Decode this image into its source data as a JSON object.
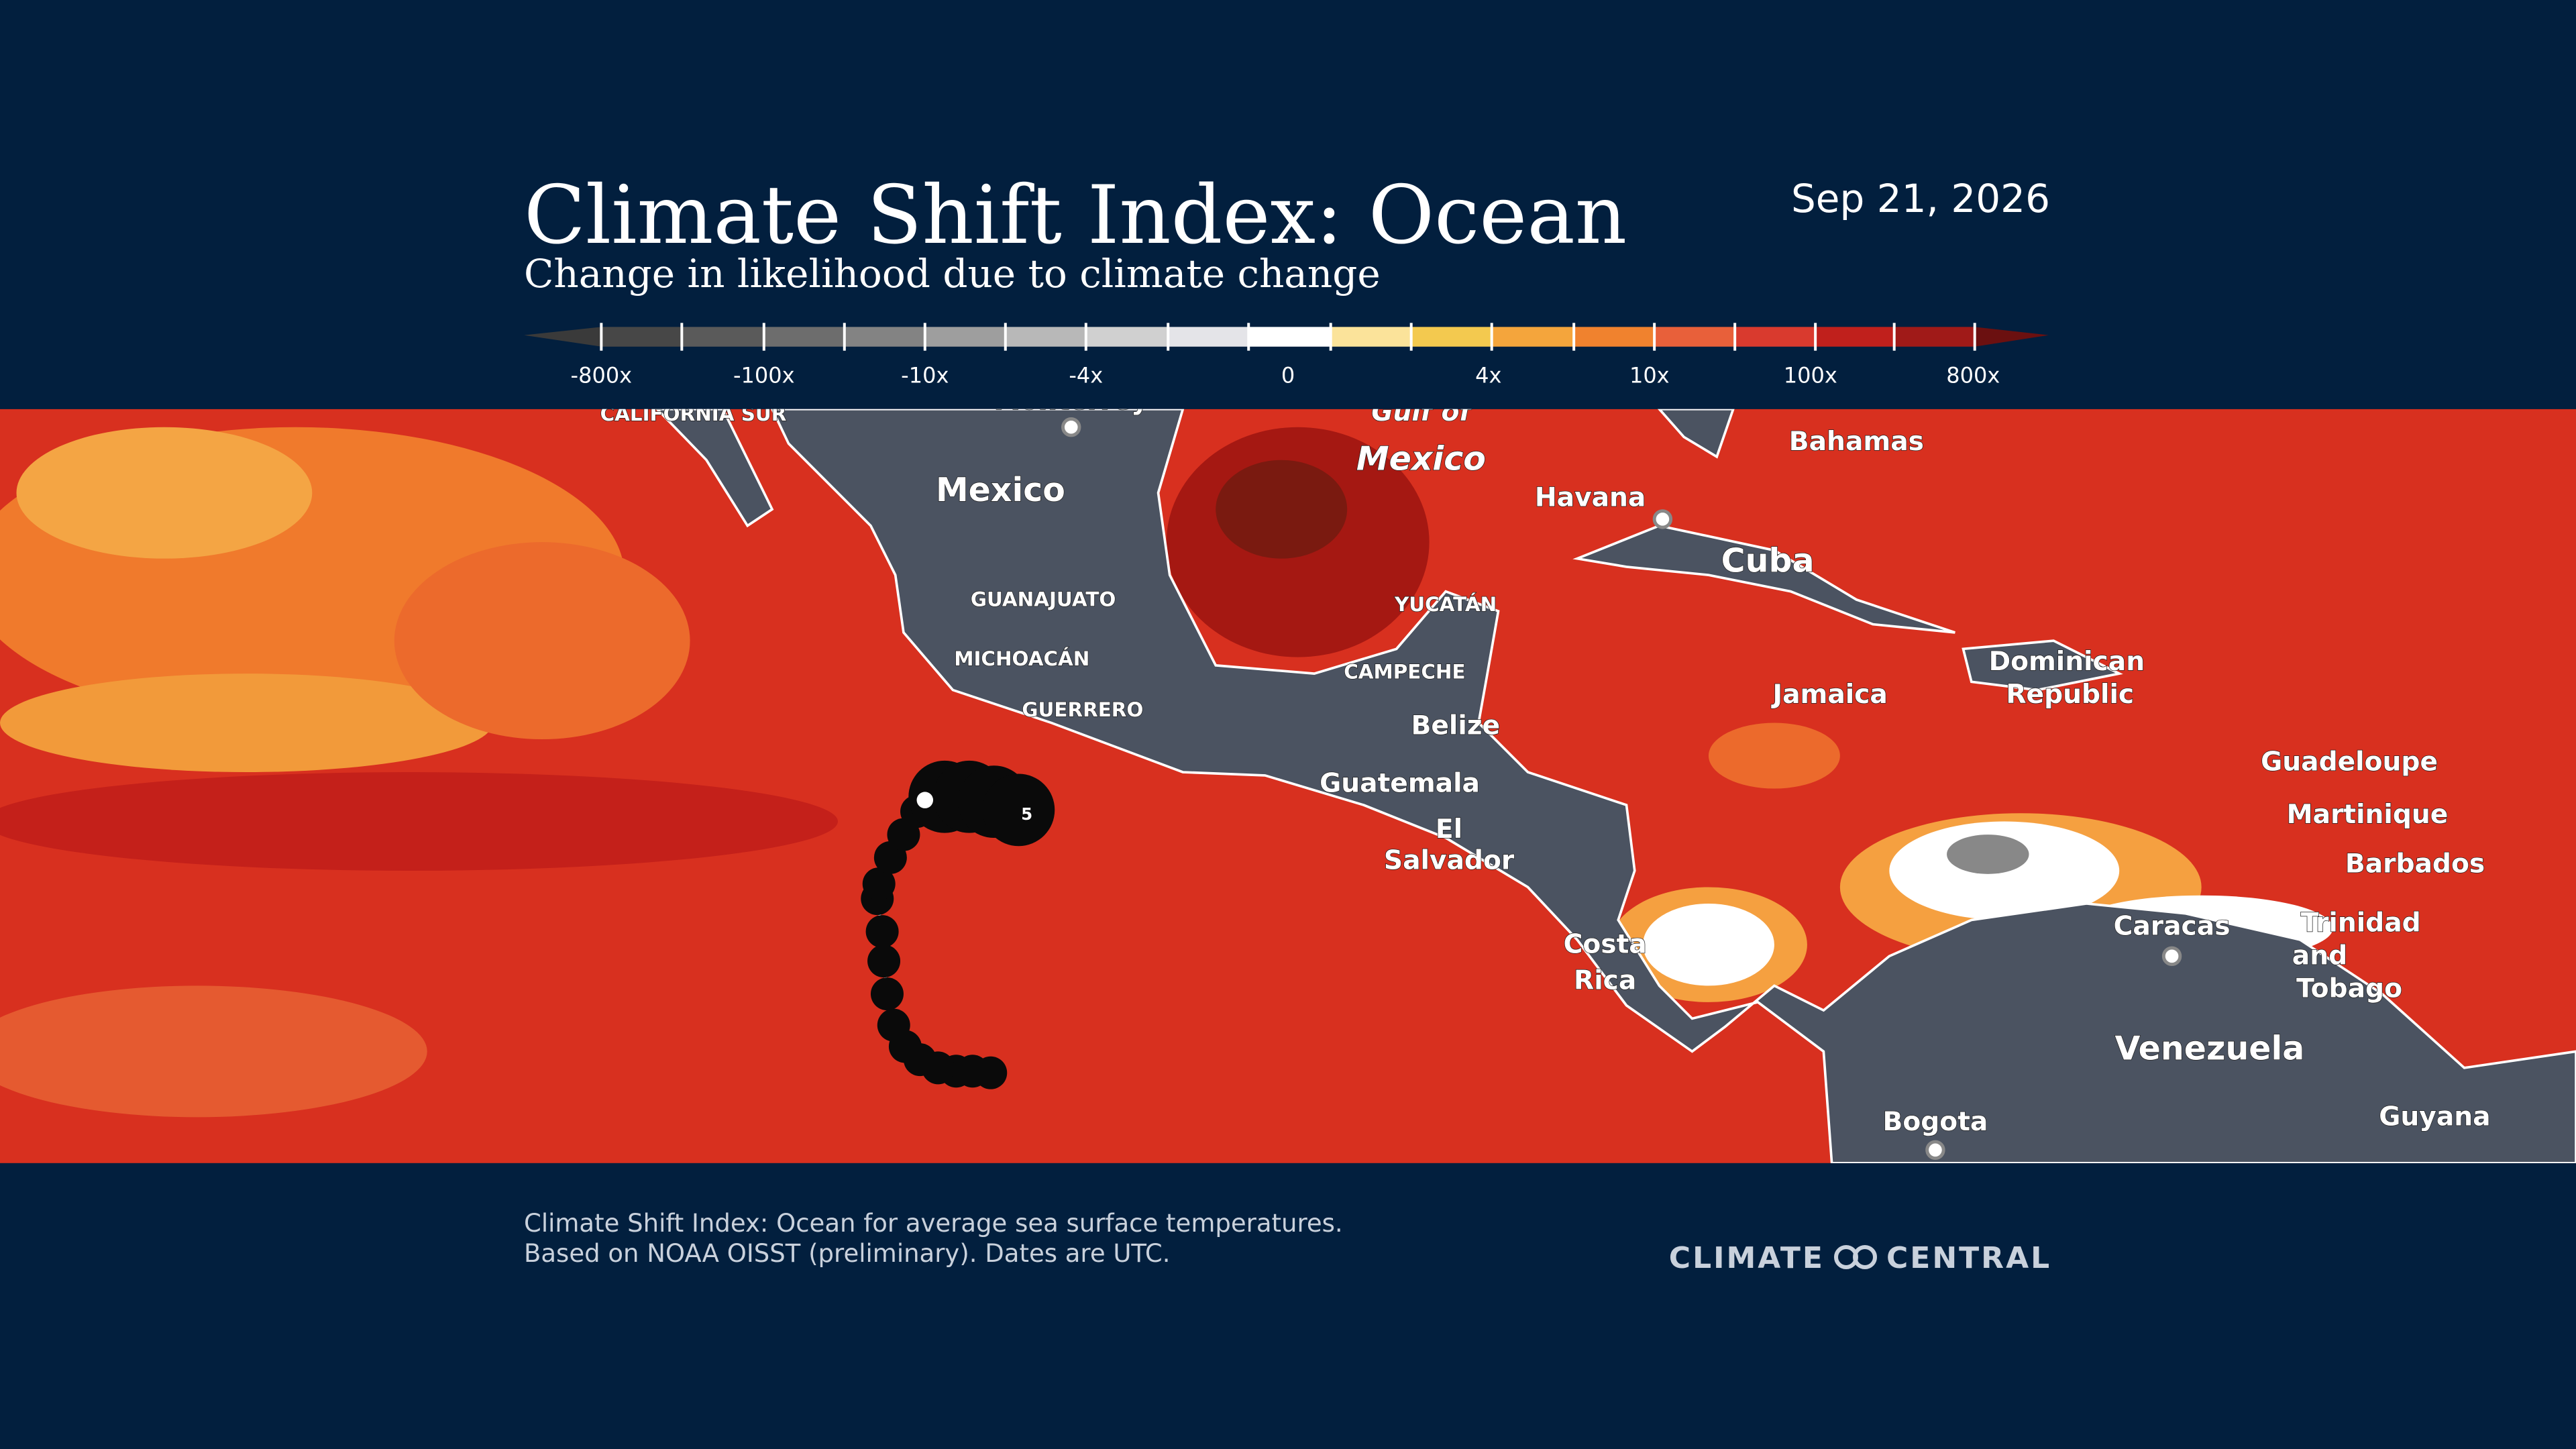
{
  "header": {
    "title": "Climate Shift Index: Ocean",
    "subtitle": "Change in likelihood due to climate change",
    "date": "Sep 21, 2026"
  },
  "legend": {
    "labels": [
      "-800x",
      "-100x",
      "-10x",
      "-4x",
      "0",
      "4x",
      "10x",
      "100x",
      "800x"
    ],
    "colors": [
      "#3a3a3a",
      "#474747",
      "#5a5a5a",
      "#6d6d6d",
      "#838383",
      "#9e9e9e",
      "#b8b8b8",
      "#d0d0d0",
      "#e4e4e8",
      "#ffffff",
      "#fbe39a",
      "#f3c94f",
      "#f4a53c",
      "#f0822e",
      "#e8603a",
      "#d93a2e",
      "#c0201c",
      "#a01a18",
      "#6b1010"
    ]
  },
  "map": {
    "labels": [
      "CALIFORNIA SUR",
      "Monterrey",
      "Mexico",
      "GUANAJUATO",
      "MICHOACÁN",
      "GUERRERO",
      "Gulf of",
      "Mexico",
      "Havana",
      "Bahamas",
      "Cuba",
      "YUCATÁN",
      "CAMPECHE",
      "Belize",
      "Guatemala",
      "El",
      "Salvador",
      "Jamaica",
      "Dominican",
      "Republic",
      "Guadeloupe",
      "Martinique",
      "Barbados",
      "Costa",
      "Rica",
      "Trinidad",
      "and",
      "Tobago",
      "Caracas",
      "Venezuela",
      "Bogota",
      "Guyana"
    ],
    "storm_category": "5"
  },
  "footer": {
    "note_line1": "Climate Shift Index: Ocean for average sea surface temperatures.",
    "note_line2": "Based on NOAA OISST (preliminary). Dates are UTC.",
    "logo_left": "CLIMATE",
    "logo_right": "CENTRAL"
  }
}
